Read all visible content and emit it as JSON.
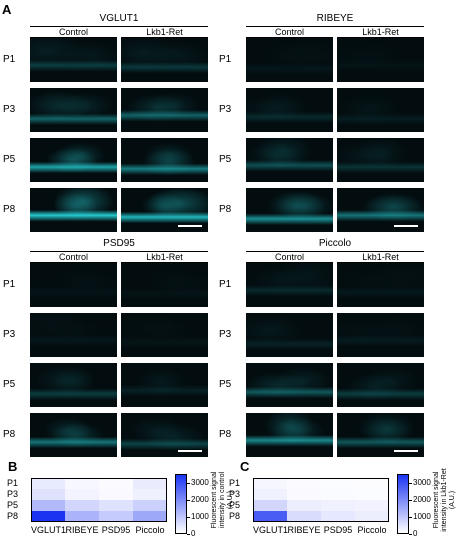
{
  "panel_letters": {
    "a": "A",
    "b": "B",
    "c": "C"
  },
  "rows": [
    "P1",
    "P3",
    "P5",
    "P8"
  ],
  "conditions": [
    "Control",
    "Lkb1-Ret"
  ],
  "groups": [
    {
      "key": "vglut1",
      "title": "VGLUT1",
      "levels": {
        "control": [
          0.25,
          0.45,
          0.8,
          1.0
        ],
        "mutant": [
          0.22,
          0.45,
          0.6,
          0.9
        ]
      }
    },
    {
      "key": "ribeye",
      "title": "RIBEYE",
      "levels": {
        "control": [
          0.05,
          0.15,
          0.35,
          0.7
        ],
        "mutant": [
          0.03,
          0.08,
          0.2,
          0.55
        ]
      }
    },
    {
      "key": "psd95",
      "title": "PSD95",
      "levels": {
        "control": [
          0.03,
          0.05,
          0.25,
          0.55
        ],
        "mutant": [
          0.03,
          0.04,
          0.1,
          0.3
        ]
      }
    },
    {
      "key": "piccolo",
      "title": "Piccolo",
      "levels": {
        "control": [
          0.15,
          0.1,
          0.4,
          0.65
        ],
        "mutant": [
          0.06,
          0.07,
          0.25,
          0.4
        ]
      }
    }
  ],
  "colors": {
    "signal": "#27d3d8",
    "background": "#030d10",
    "heatmap_max": "#1c34f2"
  },
  "chart_data": [
    {
      "type": "heatmap",
      "panel": "B",
      "rows": [
        "P1",
        "P3",
        "P5",
        "P8"
      ],
      "columns": [
        "VGLUT1",
        "RIBEYE",
        "PSD95",
        "Piccolo"
      ],
      "values": [
        [
          350,
          120,
          80,
          320
        ],
        [
          500,
          200,
          100,
          250
        ],
        [
          1200,
          700,
          500,
          800
        ],
        [
          3500,
          1300,
          900,
          1500
        ]
      ],
      "colorbar": {
        "min": 0,
        "max": 3500,
        "ticks": [
          0,
          1000,
          2000,
          3000
        ],
        "label": "Fluorescent signal intensity in control (A.U.)"
      }
    },
    {
      "type": "heatmap",
      "panel": "C",
      "rows": [
        "P1",
        "P3",
        "P5",
        "P8"
      ],
      "columns": [
        "VGLUT1",
        "RIBEYE",
        "PSD95",
        "Piccolo"
      ],
      "values": [
        [
          150,
          80,
          60,
          50
        ],
        [
          250,
          100,
          70,
          60
        ],
        [
          700,
          300,
          250,
          200
        ],
        [
          2800,
          600,
          400,
          300
        ]
      ],
      "colorbar": {
        "min": 0,
        "max": 3500,
        "ticks": [
          0,
          1000,
          2000,
          3000
        ],
        "label": "Fluorescent signal intensity in Lkb1-Ret (A.U.)"
      }
    }
  ]
}
